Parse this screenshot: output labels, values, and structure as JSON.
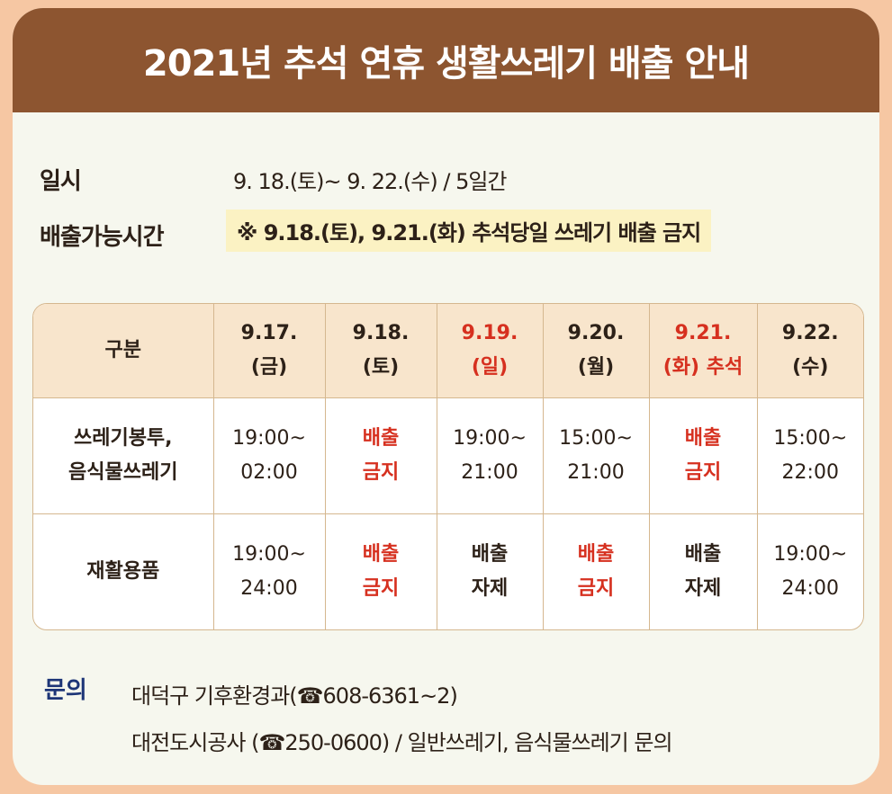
{
  "title": "2021년 추석 연휴 생활쓰레기 배출 안내",
  "date_label": "일시",
  "date_value": "9. 18.(토)~ 9. 22.(수) / 5일간",
  "time_label": "배출가능시간",
  "notice": "※ 9.18.(토), 9.21.(화) 추석당일 쓰레기 배출 금지",
  "colors": {
    "header": "#8d5530",
    "accent_red": "#d6301f",
    "contact_blue": "#1d3577",
    "table_header_bg": "#f8e5cc",
    "notice_bg": "#fbf2c3"
  },
  "table": {
    "header_corner": "구분",
    "columns": [
      {
        "date": "9.17.",
        "day": "(금)",
        "holiday": false
      },
      {
        "date": "9.18.",
        "day": "(토)",
        "holiday": false
      },
      {
        "date": "9.19.",
        "day": "(일)",
        "holiday": true
      },
      {
        "date": "9.20.",
        "day": "(월)",
        "holiday": false
      },
      {
        "date": "9.21.",
        "day": "(화) 추석",
        "holiday": true
      },
      {
        "date": "9.22.",
        "day": "(수)",
        "holiday": false
      }
    ],
    "rows": [
      {
        "label_line1": "쓰레기봉투,",
        "label_line2": "음식물쓰레기",
        "cells": [
          {
            "line1": "19:00~",
            "line2": "02:00",
            "style": "normal"
          },
          {
            "line1": "배출",
            "line2": "금지",
            "style": "banned"
          },
          {
            "line1": "19:00~",
            "line2": "21:00",
            "style": "normal"
          },
          {
            "line1": "15:00~",
            "line2": "21:00",
            "style": "normal"
          },
          {
            "line1": "배출",
            "line2": "금지",
            "style": "banned"
          },
          {
            "line1": "15:00~",
            "line2": "22:00",
            "style": "normal"
          }
        ]
      },
      {
        "label_line1": "재활용품",
        "label_line2": "",
        "cells": [
          {
            "line1": "19:00~",
            "line2": "24:00",
            "style": "normal"
          },
          {
            "line1": "배출",
            "line2": "금지",
            "style": "banned"
          },
          {
            "line1": "배출",
            "line2": "자제",
            "style": "restrained"
          },
          {
            "line1": "배출",
            "line2": "금지",
            "style": "banned"
          },
          {
            "line1": "배출",
            "line2": "자제",
            "style": "restrained"
          },
          {
            "line1": "19:00~",
            "line2": "24:00",
            "style": "normal"
          }
        ]
      }
    ]
  },
  "contact": {
    "label": "문의",
    "line1": "대덕구 기후환경과(☎608-6361~2)",
    "line2": "대전도시공사 (☎250-0600) / 일반쓰레기, 음식물쓰레기 문의"
  }
}
